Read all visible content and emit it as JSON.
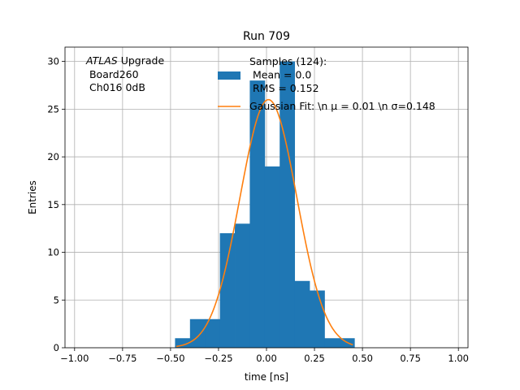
{
  "chart_data": {
    "type": "bar",
    "title": "Run 709",
    "xlabel": "time [ns]",
    "ylabel": "Entries",
    "xlim": [
      -1.05,
      1.05
    ],
    "ylim": [
      0,
      31.5
    ],
    "xticks": [
      -1.0,
      -0.75,
      -0.5,
      -0.25,
      0.0,
      0.25,
      0.5,
      0.75,
      1.0
    ],
    "xtick_labels": [
      "−1.00",
      "−0.75",
      "−0.50",
      "−0.25",
      "0.00",
      "0.25",
      "0.50",
      "0.75",
      "1.00"
    ],
    "yticks": [
      0,
      5,
      10,
      15,
      20,
      25,
      30
    ],
    "ytick_labels": [
      "0",
      "5",
      "10",
      "15",
      "20",
      "25",
      "30"
    ],
    "grid": true,
    "legend_position": "upper-right",
    "histogram": {
      "bin_edges": [
        -0.4766,
        -0.3987,
        -0.3208,
        -0.2429,
        -0.165,
        -0.0871,
        -0.0092,
        0.0687,
        0.1466,
        0.2245,
        0.3024,
        0.3803,
        0.4582
      ],
      "counts": [
        1,
        3,
        3,
        12,
        13,
        28,
        19,
        30,
        7,
        6,
        1,
        1
      ],
      "color": "#1f77b4"
    },
    "fit": {
      "mu": 0.01,
      "sigma": 0.148,
      "amplitude": 26.0,
      "x_range": [
        -0.47,
        0.45
      ],
      "color": "#ff7f0e"
    },
    "legend": [
      {
        "label_lines": [
          "Samples (124):",
          " Mean = 0.0",
          " RMS = 0.152"
        ],
        "marker": "patch",
        "color": "#1f77b4"
      },
      {
        "label_lines": [
          "Gaussian Fit: \\n μ = 0.01 \\n σ=0.148"
        ],
        "marker": "line",
        "color": "#ff7f0e"
      }
    ],
    "annotation": {
      "atlas_italic": "ATLAS",
      "atlas_rest": " Upgrade",
      "line2": " Board260",
      "line3": " Ch016 0dB"
    }
  }
}
